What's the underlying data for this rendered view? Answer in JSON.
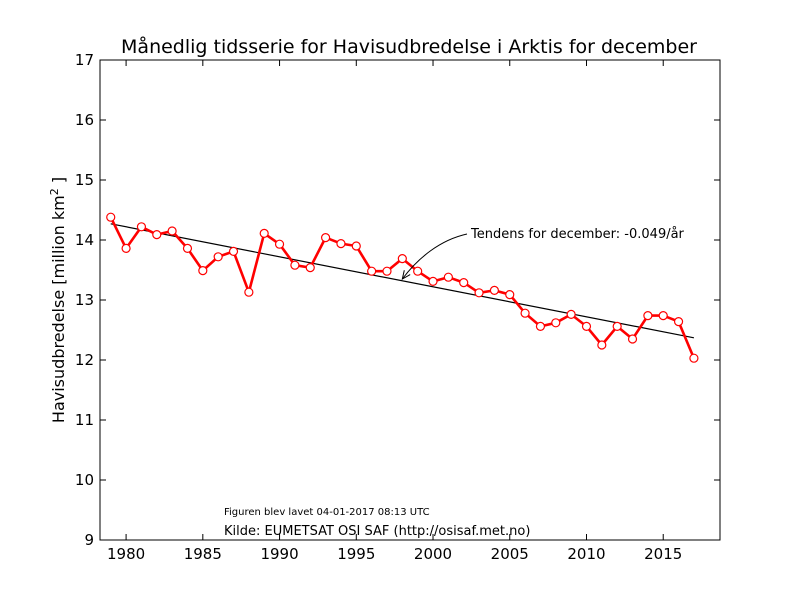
{
  "chart_data": {
    "type": "line",
    "title": "Månedlig tidsserie for Havisudbredelse i Arktis for december",
    "xlabel": "",
    "ylabel": "Havisudbredelse [million km² ]",
    "ylabel_main": "Havisudbredelse [million km",
    "ylabel_sup": "2",
    "ylabel_end": " ]",
    "xlim": [
      1978.3,
      2018.7
    ],
    "ylim": [
      9,
      17
    ],
    "xticks": [
      1980,
      1985,
      1990,
      1995,
      2000,
      2005,
      2010,
      2015
    ],
    "yticks": [
      9,
      10,
      11,
      12,
      13,
      14,
      15,
      16,
      17
    ],
    "grid": false,
    "series": [
      {
        "color": "#ff0000",
        "marker": "open-circle",
        "x": [
          1979,
          1980,
          1981,
          1982,
          1983,
          1984,
          1985,
          1986,
          1987,
          1988,
          1989,
          1990,
          1991,
          1992,
          1993,
          1994,
          1995,
          1996,
          1997,
          1998,
          1999,
          2000,
          2001,
          2002,
          2003,
          2004,
          2005,
          2006,
          2007,
          2008,
          2009,
          2010,
          2011,
          2012,
          2013,
          2014,
          2015,
          2016,
          2017
        ],
        "y": [
          14.38,
          13.86,
          14.22,
          14.09,
          14.15,
          13.86,
          13.49,
          13.72,
          13.81,
          13.13,
          14.11,
          13.93,
          13.58,
          13.54,
          14.04,
          13.94,
          13.9,
          13.48,
          13.48,
          13.69,
          13.48,
          13.31,
          13.38,
          13.29,
          13.12,
          13.16,
          13.09,
          12.78,
          12.56,
          12.62,
          12.76,
          12.56,
          12.25,
          12.56,
          12.35,
          12.74,
          12.74,
          12.64,
          12.03
        ]
      }
    ],
    "trend": {
      "color": "#000000",
      "x": [
        1979,
        2017
      ],
      "y": [
        14.27,
        12.37
      ]
    },
    "annotation": {
      "text": "Tendens for december: -0.049/år",
      "arrow_target": [
        1998,
        13.35
      ]
    },
    "footer_small": "Figuren blev lavet 04-01-2017 08:13 UTC",
    "footer_source": "Kilde: EUMETSAT OSI SAF (http://osisaf.met.no)"
  }
}
